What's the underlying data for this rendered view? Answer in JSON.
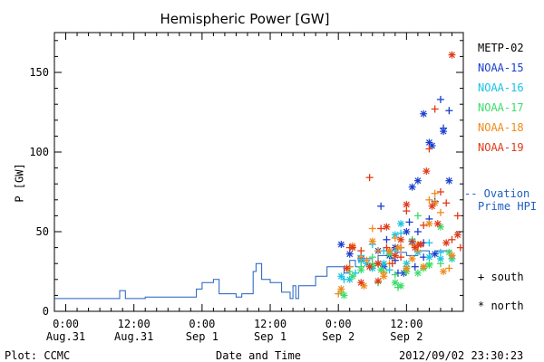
{
  "chart_data": {
    "type": "scatter",
    "title": "Hemispheric Power [GW]",
    "xlabel": "Date and Time",
    "ylabel": "P [GW]",
    "ylim": [
      0,
      175
    ],
    "yticks": [
      0,
      50,
      100,
      150
    ],
    "xlim_hours": [
      -2,
      70
    ],
    "xticks": [
      {
        "h": 0,
        "l1": "0:00",
        "l2": "Aug.31"
      },
      {
        "h": 12,
        "l1": "12:00",
        "l2": "Aug.31"
      },
      {
        "h": 24,
        "l1": "0:00",
        "l2": "Sep 1"
      },
      {
        "h": 36,
        "l1": "12:00",
        "l2": "Sep 1"
      },
      {
        "h": 48,
        "l1": "0:00",
        "l2": "Sep 2"
      },
      {
        "h": 60,
        "l1": "12:00",
        "l2": "Sep 2"
      }
    ],
    "legend": [
      "METP-02",
      "NOAA-15",
      "NOAA-16",
      "NOAA-17",
      "NOAA-18",
      "NOAA-19"
    ],
    "colors": {
      "METP-02": "#000000",
      "NOAA-15": "#1a3fcc",
      "NOAA-16": "#19c3e6",
      "NOAA-17": "#3ddc6a",
      "NOAA-18": "#f08a19",
      "NOAA-19": "#e03a1a",
      "Ovation": "#1f5fbf"
    },
    "ovation_label": [
      "-- Ovation",
      "Prime HPI"
    ],
    "ovation_step": [
      [
        -2,
        8
      ],
      [
        9.5,
        8
      ],
      [
        9.5,
        13
      ],
      [
        10.5,
        13
      ],
      [
        10.5,
        8
      ],
      [
        14,
        8
      ],
      [
        14,
        9
      ],
      [
        23,
        9
      ],
      [
        23,
        14
      ],
      [
        24,
        14
      ],
      [
        24,
        18
      ],
      [
        26,
        18
      ],
      [
        26,
        20
      ],
      [
        27,
        20
      ],
      [
        27,
        11
      ],
      [
        30,
        11
      ],
      [
        30,
        9
      ],
      [
        31,
        9
      ],
      [
        31,
        11
      ],
      [
        33,
        11
      ],
      [
        33,
        25
      ],
      [
        33.5,
        25
      ],
      [
        33.5,
        30
      ],
      [
        34.5,
        30
      ],
      [
        34.5,
        20
      ],
      [
        36,
        20
      ],
      [
        36,
        18
      ],
      [
        38,
        18
      ],
      [
        38,
        12
      ],
      [
        39.5,
        12
      ],
      [
        39.5,
        8
      ],
      [
        40,
        8
      ],
      [
        40,
        16
      ],
      [
        40.5,
        16
      ],
      [
        40.5,
        8
      ],
      [
        41,
        8
      ],
      [
        41,
        16
      ],
      [
        44,
        16
      ],
      [
        44,
        22
      ],
      [
        46,
        22
      ],
      [
        46,
        28
      ],
      [
        49,
        28
      ],
      [
        49,
        24
      ],
      [
        50,
        24
      ],
      [
        50,
        32
      ],
      [
        51,
        32
      ],
      [
        51,
        28
      ],
      [
        52,
        28
      ],
      [
        52,
        33
      ],
      [
        54,
        33
      ],
      [
        54,
        30
      ],
      [
        55,
        30
      ],
      [
        55,
        35
      ],
      [
        57,
        35
      ],
      [
        57,
        33
      ],
      [
        58,
        33
      ],
      [
        58,
        37
      ],
      [
        60,
        37
      ],
      [
        60,
        35
      ],
      [
        62,
        35
      ],
      [
        62,
        38
      ],
      [
        64,
        38
      ],
      [
        64,
        36
      ],
      [
        65,
        36
      ],
      [
        65,
        38
      ],
      [
        68,
        38
      ]
    ],
    "points": {
      "NOAA-15": {
        "south": [
          [
            55.5,
            66
          ],
          [
            56.5,
            45
          ],
          [
            57,
            38
          ],
          [
            58,
            32
          ],
          [
            59,
            40
          ],
          [
            60.5,
            56
          ],
          [
            62,
            50
          ],
          [
            63,
            43
          ],
          [
            64,
            58
          ],
          [
            65,
            69
          ],
          [
            66,
            133
          ],
          [
            66.5,
            115
          ],
          [
            67.5,
            126
          ],
          [
            61.5,
            28
          ],
          [
            55,
            30
          ],
          [
            58.5,
            24
          ],
          [
            63,
            34
          ]
        ],
        "north": [
          [
            48.5,
            42
          ],
          [
            50,
            36
          ],
          [
            52,
            33
          ],
          [
            55,
            38
          ],
          [
            56,
            28
          ],
          [
            58,
            40
          ],
          [
            60,
            50
          ],
          [
            61,
            78
          ],
          [
            62,
            82
          ],
          [
            63,
            124
          ],
          [
            64,
            106
          ],
          [
            64.5,
            104
          ],
          [
            66.5,
            113
          ],
          [
            67.5,
            82
          ],
          [
            57,
            35
          ],
          [
            61,
            44
          ],
          [
            65,
            36
          ],
          [
            59.5,
            24
          ]
        ]
      },
      "NOAA-16": {
        "south": [
          [
            49,
            20
          ],
          [
            50,
            28
          ],
          [
            52,
            35
          ],
          [
            54,
            42
          ],
          [
            56,
            38
          ],
          [
            58,
            38
          ],
          [
            59,
            49
          ],
          [
            61,
            42
          ],
          [
            64,
            43
          ],
          [
            66,
            37
          ],
          [
            68,
            35
          ],
          [
            51,
            24
          ],
          [
            57,
            26
          ]
        ],
        "north": [
          [
            48.5,
            22
          ],
          [
            50,
            20
          ],
          [
            52,
            32
          ],
          [
            54,
            27
          ],
          [
            56,
            30
          ],
          [
            58,
            48
          ],
          [
            59,
            55
          ],
          [
            62,
            37
          ],
          [
            64,
            34
          ],
          [
            66,
            33
          ],
          [
            68,
            33
          ],
          [
            53,
            30
          ],
          [
            60,
            30
          ]
        ]
      },
      "NOAA-17": {
        "south": [
          [
            48.5,
            12
          ],
          [
            50,
            25
          ],
          [
            52,
            28
          ],
          [
            54,
            34
          ],
          [
            55,
            18
          ],
          [
            56,
            25
          ],
          [
            58,
            23
          ],
          [
            60,
            28
          ],
          [
            61,
            45
          ],
          [
            62,
            60
          ],
          [
            64,
            30
          ],
          [
            66,
            30
          ],
          [
            68,
            33
          ],
          [
            58.5,
            15
          ]
        ],
        "north": [
          [
            49,
            10
          ],
          [
            50.5,
            22
          ],
          [
            52,
            26
          ],
          [
            54,
            29
          ],
          [
            55.5,
            26
          ],
          [
            57,
            36
          ],
          [
            58,
            18
          ],
          [
            60,
            25
          ],
          [
            62,
            24
          ],
          [
            64,
            29
          ],
          [
            66,
            53
          ],
          [
            67.5,
            37
          ],
          [
            63,
            27
          ],
          [
            59,
            16
          ]
        ]
      },
      "NOAA-18": {
        "south": [
          [
            48,
            11
          ],
          [
            50,
            28
          ],
          [
            52,
            34
          ],
          [
            54,
            52
          ],
          [
            55,
            38
          ],
          [
            57,
            30
          ],
          [
            58,
            46
          ],
          [
            59,
            40
          ],
          [
            61,
            42
          ],
          [
            62,
            38
          ],
          [
            64,
            70
          ],
          [
            65,
            74
          ],
          [
            66,
            62
          ],
          [
            67.5,
            27
          ],
          [
            53,
            32
          ],
          [
            56,
            24
          ]
        ],
        "north": [
          [
            48.5,
            14
          ],
          [
            50.5,
            41
          ],
          [
            52.5,
            16
          ],
          [
            54,
            44
          ],
          [
            56,
            22
          ],
          [
            57,
            38
          ],
          [
            58.5,
            40
          ],
          [
            60,
            27
          ],
          [
            62,
            42
          ],
          [
            63,
            28
          ],
          [
            64,
            55
          ],
          [
            65,
            68
          ],
          [
            66.5,
            25
          ],
          [
            68,
            35
          ],
          [
            55,
            30
          ],
          [
            61,
            33
          ]
        ]
      },
      "NOAA-19": {
        "south": [
          [
            50,
            40
          ],
          [
            52,
            38
          ],
          [
            53.5,
            84
          ],
          [
            55.5,
            52
          ],
          [
            56.5,
            40
          ],
          [
            57.5,
            30
          ],
          [
            59,
            34
          ],
          [
            60,
            63
          ],
          [
            61,
            44
          ],
          [
            62,
            41
          ],
          [
            63,
            54
          ],
          [
            64,
            102
          ],
          [
            65,
            127
          ],
          [
            66,
            75
          ],
          [
            67,
            68
          ],
          [
            68,
            45
          ],
          [
            69,
            60
          ],
          [
            69.5,
            40
          ]
        ],
        "north": [
          [
            49.5,
            27
          ],
          [
            50.5,
            40
          ],
          [
            52,
            18
          ],
          [
            53.5,
            28
          ],
          [
            55,
            30
          ],
          [
            56.5,
            53
          ],
          [
            58,
            35
          ],
          [
            60,
            67
          ],
          [
            61.5,
            40
          ],
          [
            62.5,
            42
          ],
          [
            63.5,
            88
          ],
          [
            64.5,
            66
          ],
          [
            65.5,
            55
          ],
          [
            67,
            43
          ],
          [
            68,
            161
          ],
          [
            69,
            48
          ],
          [
            55,
            19
          ],
          [
            59,
            45
          ]
        ]
      }
    },
    "symbol_legend": [
      "+ south",
      "* north"
    ]
  },
  "footer": {
    "left": "Plot: CCMC",
    "right": "2012/09/02 23:30:23"
  }
}
